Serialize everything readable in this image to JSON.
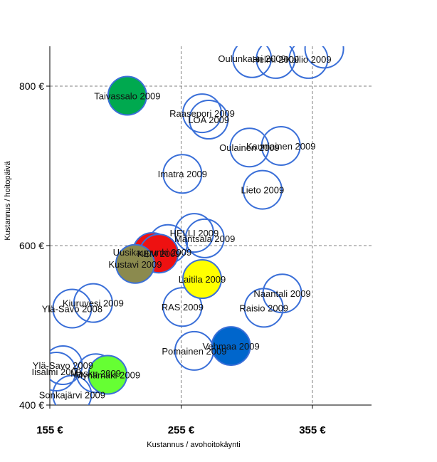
{
  "chart_data": {
    "type": "scatter",
    "xlabel": "Kustannus / avohoitokäynti",
    "ylabel": "Kustannus / hoitopäivä",
    "xlim": [
      155,
      400
    ],
    "ylim": [
      400,
      850
    ],
    "x_ticks": [
      155,
      255,
      355
    ],
    "x_tick_labels": [
      "155 €",
      "255 €",
      "355 €"
    ],
    "y_ticks": [
      400,
      600,
      800
    ],
    "y_tick_labels": [
      "400 €",
      "600 €",
      "800 €"
    ],
    "grid": true,
    "legend": "none",
    "points": [
      {
        "label": "Oulunkaari 2009",
        "x": 309,
        "y": 835,
        "color": "none"
      },
      {
        "label": "Helmi 2009",
        "x": 327,
        "y": 834,
        "color": "none"
      },
      {
        "label": "Kallio 2009",
        "x": 352,
        "y": 834,
        "color": "none"
      },
      {
        "label": "",
        "x": 364,
        "y": 847,
        "color": "none"
      },
      {
        "label": "Taivassalo 2009",
        "x": 214,
        "y": 788,
        "color": "#00a94f"
      },
      {
        "label": "Raasepori 2009",
        "x": 271,
        "y": 766,
        "color": "none"
      },
      {
        "label": "LOA 2009",
        "x": 276,
        "y": 758,
        "color": "none"
      },
      {
        "label": "Oulainen 2009",
        "x": 307,
        "y": 723,
        "color": "none"
      },
      {
        "label": "Kauniainen 2009",
        "x": 331,
        "y": 725,
        "color": "none"
      },
      {
        "label": "Imatra 2009",
        "x": 256,
        "y": 690,
        "color": "none"
      },
      {
        "label": "Lieto 2009",
        "x": 317,
        "y": 670,
        "color": "none"
      },
      {
        "label": "HELLI 2009",
        "x": 265,
        "y": 616,
        "color": "none"
      },
      {
        "label": "Mantsala 2009",
        "x": 273,
        "y": 609,
        "color": "none"
      },
      {
        "label": "",
        "x": 245,
        "y": 602,
        "color": "none"
      },
      {
        "label": "Uusikaupunki 2009",
        "x": 233,
        "y": 592,
        "color": "#ee1111"
      },
      {
        "label": "KEM 2009",
        "x": 238,
        "y": 590,
        "color": "#ee1111"
      },
      {
        "label": "Kustavi 2009",
        "x": 220,
        "y": 577,
        "color": "#8b8a4e"
      },
      {
        "label": "Laitila 2009",
        "x": 271,
        "y": 558,
        "color": "#ffff00"
      },
      {
        "label": "Naantali 2009",
        "x": 332,
        "y": 540,
        "color": "none"
      },
      {
        "label": "Raisio 2009",
        "x": 318,
        "y": 522,
        "color": "none"
      },
      {
        "label": "RAS 2009",
        "x": 256,
        "y": 523,
        "color": "none"
      },
      {
        "label": "Kiuruvesi 2009",
        "x": 188,
        "y": 528,
        "color": "none"
      },
      {
        "label": "Ylä-Savo 2008",
        "x": 172,
        "y": 521,
        "color": "none"
      },
      {
        "label": "Vehmaa 2009",
        "x": 293,
        "y": 474,
        "color": "#0066cc"
      },
      {
        "label": "Pomainen 2009",
        "x": 265,
        "y": 468,
        "color": "none"
      },
      {
        "label": "Ylä-Savo 2009",
        "x": 165,
        "y": 450,
        "color": "none"
      },
      {
        "label": "Iisalmi 2009",
        "x": 160,
        "y": 442,
        "color": "none"
      },
      {
        "label": "Masku 2009",
        "x": 190,
        "y": 440,
        "color": "none"
      },
      {
        "label": "Mynämäki 2009",
        "x": 199,
        "y": 438,
        "color": "#66ff33"
      },
      {
        "label": "Sonkajärvi 2009",
        "x": 172,
        "y": 413,
        "color": "none"
      }
    ]
  }
}
